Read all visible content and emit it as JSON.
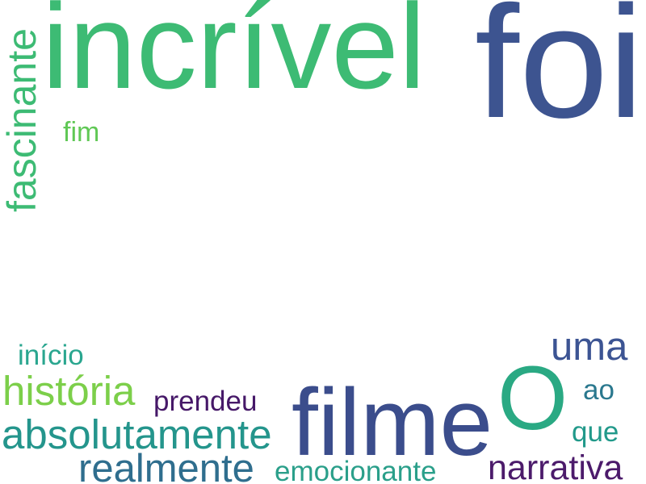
{
  "word_cloud": {
    "words": [
      {
        "text": "incrível",
        "color": "#3dbb74"
      },
      {
        "text": "foi",
        "color": "#3d5490"
      },
      {
        "text": "fascinante",
        "color": "#3dbb74"
      },
      {
        "text": "fim",
        "color": "#60c855"
      },
      {
        "text": "início",
        "color": "#2aa68f"
      },
      {
        "text": "história",
        "color": "#7ccf4a"
      },
      {
        "text": "prendeu",
        "color": "#461868"
      },
      {
        "text": "filme",
        "color": "#3b4d8c"
      },
      {
        "text": "O",
        "color": "#2aa983"
      },
      {
        "text": "uma",
        "color": "#3c5493"
      },
      {
        "text": "ao",
        "color": "#2a788e"
      },
      {
        "text": "absolutamente",
        "color": "#24958c"
      },
      {
        "text": "que",
        "color": "#21998a"
      },
      {
        "text": "realmente",
        "color": "#2f6e8e"
      },
      {
        "text": "emocionante",
        "color": "#2a9f8a"
      },
      {
        "text": "narrativa",
        "color": "#4c1b6b"
      }
    ]
  }
}
